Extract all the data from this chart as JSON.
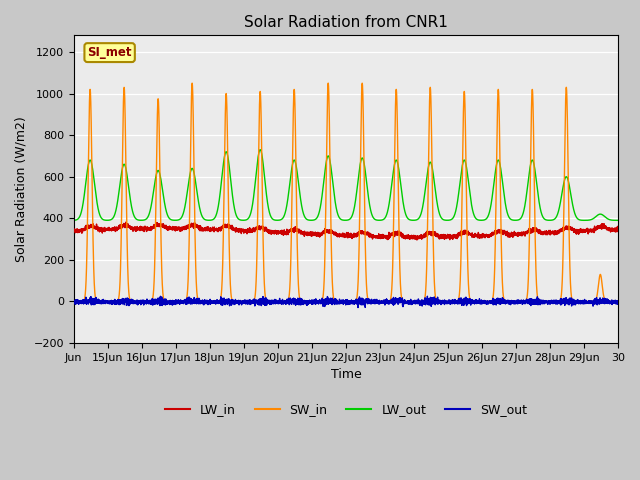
{
  "title": "Solar Radiation from CNR1",
  "xlabel": "Time",
  "ylabel": "Solar Radiation (W/m2)",
  "ylim": [
    -200,
    1280
  ],
  "yticks": [
    -200,
    0,
    200,
    400,
    600,
    800,
    1000,
    1200
  ],
  "plot_bg_color": "#ebebeb",
  "fig_bg_color": "#c8c8c8",
  "grid_color": "white",
  "lw_in_color": "#cc0000",
  "sw_in_color": "#ff8800",
  "lw_out_color": "#00cc00",
  "sw_out_color": "#0000bb",
  "station_label": "SI_met",
  "xtick_labels": [
    "Jun",
    "15Jun",
    "16Jun",
    "17Jun",
    "18Jun",
    "19Jun",
    "20Jun",
    "21Jun",
    "22Jun",
    "23Jun",
    "24Jun",
    "25Jun",
    "26Jun",
    "27Jun",
    "28Jun",
    "29Jun",
    "30"
  ],
  "xtick_positions": [
    14,
    15,
    16,
    17,
    18,
    19,
    20,
    21,
    22,
    23,
    24,
    25,
    26,
    27,
    28,
    29,
    30
  ]
}
